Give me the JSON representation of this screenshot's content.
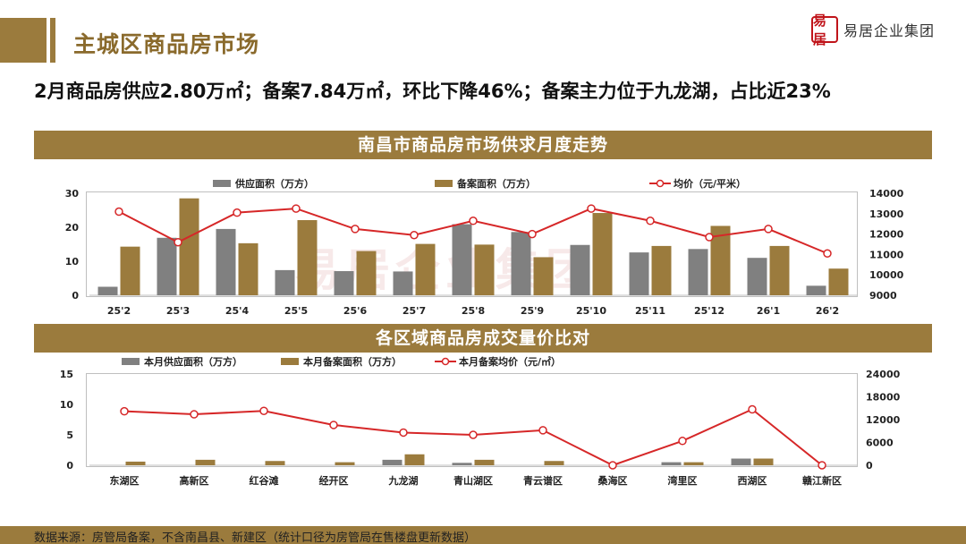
{
  "header": {
    "title": "主城区商品房市场",
    "logo_text": "易居企业集团",
    "logo_seal": "易居"
  },
  "headline": "2月商品房供应2.80万㎡；备案7.84万㎡，环比下降46%；备案主力位于九龙湖，占比近23%",
  "section1": {
    "title": "南昌市商品房市场供求月度走势"
  },
  "section2": {
    "title": "各区域商品房成交量价比对"
  },
  "watermark_text": "易居企业集团",
  "footer": {
    "source": "数据来源：房管局备案，不含南昌县、新建区（统计口径为房管局在售楼盘更新数据）"
  },
  "colors": {
    "supply": "#808080",
    "sales": "#9b7b3d",
    "price": "#d62728",
    "band": "#9b7b3d"
  },
  "chart_data": [
    {
      "type": "bar",
      "categories": [
        "25'2",
        "25'3",
        "25'4",
        "25'5",
        "25'6",
        "25'7",
        "25'8",
        "25'9",
        "25'10",
        "25'11",
        "25'12",
        "26'1",
        "26'2"
      ],
      "series": [
        {
          "name": "供应面积（万方）",
          "type": "bar",
          "axis": "left",
          "values": [
            2.5,
            16.9,
            19.5,
            7.4,
            7.1,
            7.0,
            20.9,
            18.6,
            14.8,
            12.6,
            13.6,
            11.0,
            2.8
          ]
        },
        {
          "name": "备案面积（万方）",
          "type": "bar",
          "axis": "left",
          "values": [
            14.3,
            28.5,
            15.3,
            22.1,
            13.0,
            15.1,
            14.9,
            11.2,
            24.2,
            14.5,
            20.4,
            14.5,
            7.84
          ]
        },
        {
          "name": "均价（元/平米）",
          "type": "line",
          "axis": "right",
          "values": [
            13100,
            11600,
            13050,
            13250,
            12250,
            11950,
            12650,
            12000,
            13250,
            12650,
            11850,
            12250,
            11050
          ]
        }
      ],
      "left_axis": {
        "ylim": [
          0,
          30
        ],
        "ticks": [
          0,
          10,
          20,
          30
        ]
      },
      "right_axis": {
        "ylim": [
          9000,
          14000
        ],
        "ticks": [
          9000,
          10000,
          11000,
          12000,
          13000,
          14000
        ]
      },
      "legend": "top"
    },
    {
      "type": "bar",
      "categories": [
        "东湖区",
        "高新区",
        "红谷滩",
        "经开区",
        "九龙湖",
        "青山湖区",
        "青云谱区",
        "桑海区",
        "湾里区",
        "西湖区",
        "赣江新区"
      ],
      "series": [
        {
          "name": "本月供应面积（万方）",
          "type": "bar",
          "axis": "left",
          "values": [
            0,
            0,
            0,
            0,
            0.9,
            0.4,
            0,
            0,
            0.5,
            1.1,
            0
          ]
        },
        {
          "name": "本月备案面积（万方）",
          "type": "bar",
          "axis": "left",
          "values": [
            0.6,
            0.9,
            0.7,
            0.5,
            1.8,
            0.9,
            0.7,
            0,
            0.5,
            1.1,
            0
          ]
        },
        {
          "name": "本月备案均价（元/㎡）",
          "type": "line",
          "axis": "right",
          "values": [
            14200,
            13400,
            14300,
            10600,
            8600,
            8000,
            9200,
            0,
            6400,
            14700,
            0
          ]
        }
      ],
      "left_axis": {
        "ylim": [
          0,
          15
        ],
        "ticks": [
          0,
          5,
          10,
          15
        ]
      },
      "right_axis": {
        "ylim": [
          0,
          24000
        ],
        "ticks": [
          0,
          6000,
          12000,
          18000,
          24000
        ]
      },
      "legend": "top"
    }
  ]
}
